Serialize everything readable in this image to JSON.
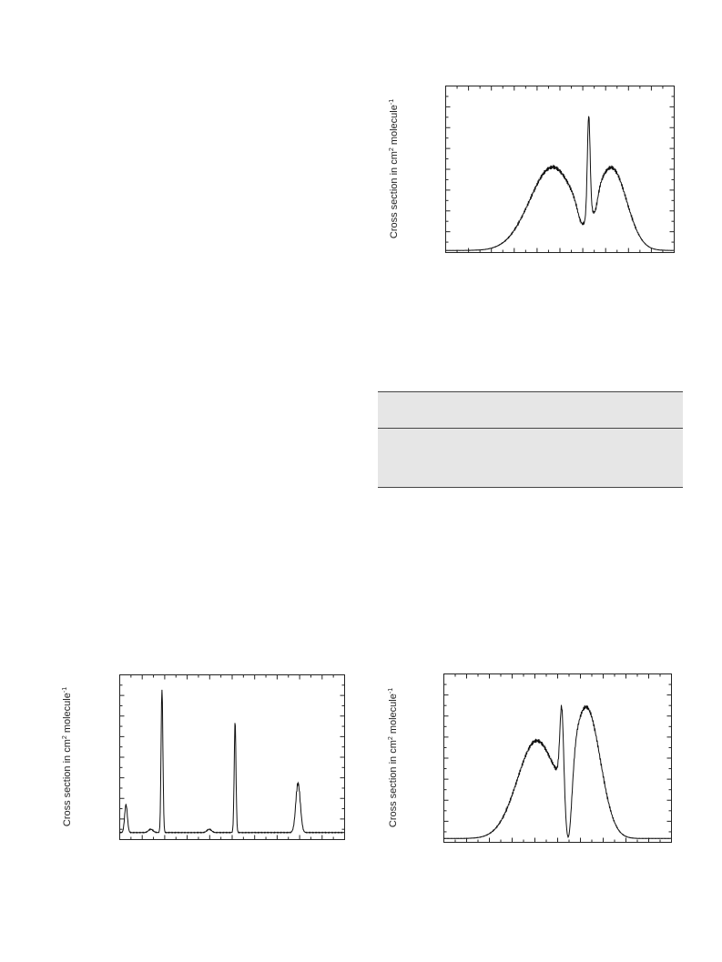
{
  "plots": [
    {
      "ylabel": {
        "text": "Cross section in cm",
        "sup1": "2",
        "mid": " molecule",
        "sup2": "-1"
      }
    },
    {
      "ylabel": {
        "text": "Cross section in cm",
        "sup1": "2",
        "mid": " molecule",
        "sup2": "-1"
      }
    },
    {
      "ylabel": {
        "text": "Cross section in cm",
        "sup1": "2",
        "mid": " molecule",
        "sup2": "-1"
      }
    }
  ]
}
